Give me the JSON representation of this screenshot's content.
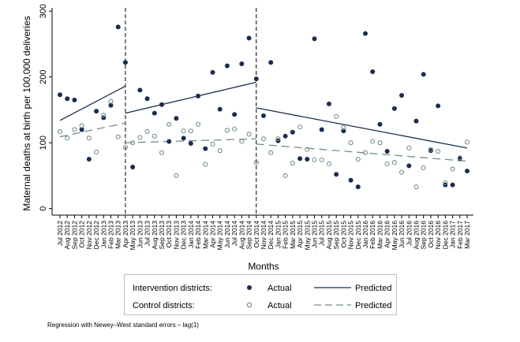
{
  "chart_data": {
    "type": "scatter",
    "ylabel": "Maternal deaths at birth per 100,000 deliveries",
    "xlabel": "Months",
    "ylim": [
      -10,
      305
    ],
    "yticks": [
      0,
      100,
      200,
      300
    ],
    "x": [
      "Jul 2012",
      "Aug 2012",
      "Sep 2012",
      "Oct 2012",
      "Nov 2012",
      "Dec 2012",
      "Jan 2013",
      "Feb 2013",
      "Mar 2013",
      "Apr 2013",
      "May 2013",
      "Jun 2013",
      "Jul 2013",
      "Aug 2013",
      "Sep 2013",
      "Oct 2013",
      "Nov 2013",
      "Dec 2013",
      "Jan 2014",
      "Feb 2014",
      "Mar 2014",
      "Apr 2014",
      "May 2014",
      "Jun 2014",
      "Jul 2014",
      "Aug 2014",
      "Sep 2014",
      "Oct 2014",
      "Nov 2014",
      "Dec 2014",
      "Jan 2015",
      "Feb 2015",
      "Mar 2015",
      "Apr 2015",
      "May 2015",
      "Jun 2015",
      "Jul 2015",
      "Aug 2015",
      "Sep 2015",
      "Oct 2015",
      "Nov 2015",
      "Dec 2015",
      "Jan 2016",
      "Feb 2016",
      "Mar 2016",
      "Apr 2016",
      "May 2016",
      "Jun 2016",
      "Jul 2016",
      "Aug 2016",
      "Sep 2016",
      "Oct 2016",
      "Nov 2016",
      "Dec 2016",
      "Jan 2017",
      "Feb 2017",
      "Mar 2017"
    ],
    "intervention_breaks": [
      "Apr 2013",
      "Oct 2014"
    ],
    "series": [
      {
        "name": "Intervention districts: Actual",
        "style": "filled-dot",
        "color": "#1b2d4f",
        "values": [
          173,
          167,
          165,
          120,
          75,
          148,
          138,
          157,
          276,
          222,
          63,
          180,
          167,
          145,
          158,
          102,
          137,
          107,
          99,
          171,
          91,
          207,
          151,
          217,
          143,
          220,
          259,
          197,
          141,
          222,
          103,
          110,
          116,
          76,
          75,
          258,
          120,
          159,
          52,
          118,
          43,
          33,
          266,
          208,
          128,
          87,
          152,
          172,
          65,
          133,
          204,
          88,
          156,
          36,
          36,
          76,
          57
        ]
      },
      {
        "name": "Control districts: Actual",
        "style": "hollow-dot",
        "color": "#6f8f8a",
        "values": [
          117,
          107,
          120,
          126,
          107,
          86,
          142,
          163,
          109,
          93,
          100,
          108,
          117,
          110,
          85,
          128,
          50,
          118,
          118,
          128,
          67,
          98,
          88,
          119,
          121,
          102,
          113,
          70,
          106,
          85,
          106,
          50,
          69,
          124,
          90,
          74,
          74,
          68,
          140,
          123,
          100,
          75,
          85,
          102,
          100,
          68,
          70,
          55,
          92,
          33,
          62,
          90,
          87,
          39,
          60,
          77,
          101
        ]
      },
      {
        "name": "Intervention districts: Predicted",
        "style": "solid-line",
        "color": "#1b2d4f",
        "segments": [
          {
            "x": [
              "Jul 2012",
              "Apr 2013"
            ],
            "y": [
              134,
              186
            ]
          },
          {
            "x": [
              "Apr 2013",
              "Oct 2014"
            ],
            "y": [
              145,
              192
            ]
          },
          {
            "x": [
              "Oct 2014",
              "Mar 2017"
            ],
            "y": [
              153,
              92
            ]
          }
        ]
      },
      {
        "name": "Control districts: Predicted",
        "style": "dashed-line",
        "color": "#6f8f8a",
        "segments": [
          {
            "x": [
              "Jul 2012",
              "Apr 2013"
            ],
            "y": [
              109,
              130
            ]
          },
          {
            "x": [
              "Apr 2013",
              "Oct 2014"
            ],
            "y": [
              100,
              106
            ]
          },
          {
            "x": [
              "Oct 2014",
              "Mar 2017"
            ],
            "y": [
              98,
              72
            ]
          }
        ]
      }
    ],
    "legend": {
      "placement": "bottom",
      "rows": [
        {
          "group": "Intervention districts:",
          "actual": "Actual",
          "predicted": "Predicted"
        },
        {
          "group": "Control districts:",
          "actual": "Actual",
          "predicted": "Predicted"
        }
      ]
    },
    "note": "Regression with Newey–West standard errors – lag(1)"
  }
}
